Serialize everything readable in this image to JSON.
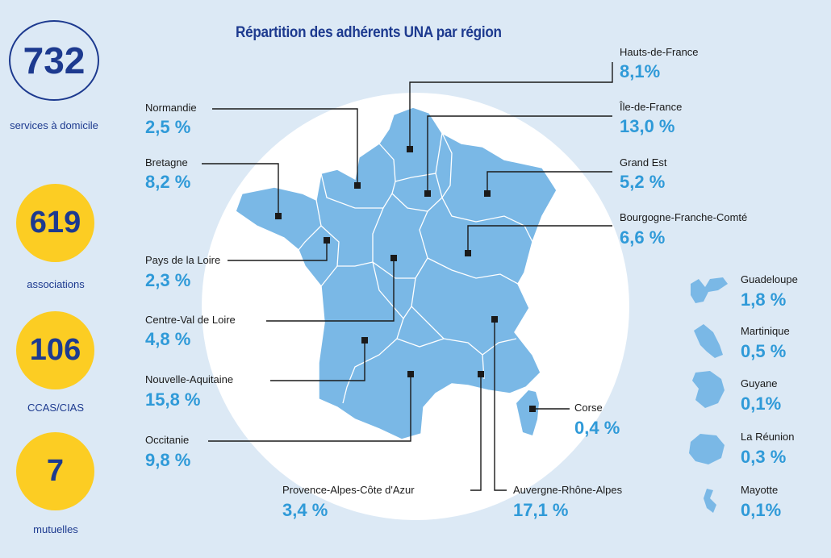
{
  "title": "Répartition des adhérents UNA par région",
  "stats": [
    {
      "value": "732",
      "label": "services à domicile",
      "style": "outline"
    },
    {
      "value": "619",
      "label": "associations",
      "style": "filled"
    },
    {
      "value": "106",
      "label": "CCAS/CIAS",
      "style": "filled"
    },
    {
      "value": "7",
      "label": "mutuelles",
      "style": "filled"
    }
  ],
  "regions": [
    {
      "id": "hauts-de-france",
      "name": "Hauts-de-France",
      "value": "8,1%"
    },
    {
      "id": "ile-de-france",
      "name": "Île-de-France",
      "value": "13,0 %"
    },
    {
      "id": "grand-est",
      "name": "Grand Est",
      "value": "5,2 %"
    },
    {
      "id": "bourgogne-franche-comte",
      "name": "Bourgogne-Franche-Comté",
      "value": "6,6 %"
    },
    {
      "id": "normandie",
      "name": "Normandie",
      "value": "2,5 %"
    },
    {
      "id": "bretagne",
      "name": "Bretagne",
      "value": "8,2 %"
    },
    {
      "id": "pays-de-la-loire",
      "name": "Pays de la Loire",
      "value": "2,3 %"
    },
    {
      "id": "centre-val-de-loire",
      "name": "Centre-Val de Loire",
      "value": "4,8 %"
    },
    {
      "id": "nouvelle-aquitaine",
      "name": "Nouvelle-Aquitaine",
      "value": "15,8 %"
    },
    {
      "id": "occitanie",
      "name": "Occitanie",
      "value": "9,8 %"
    },
    {
      "id": "provence-alpes-cote-dazur",
      "name": "Provence-Alpes-Côte d'Azur",
      "value": "3,4 %"
    },
    {
      "id": "auvergne-rhone-alpes",
      "name": "Auvergne-Rhône-Alpes",
      "value": "17,1 %"
    },
    {
      "id": "corse",
      "name": "Corse",
      "value": "0,4 %"
    }
  ],
  "overseas": [
    {
      "id": "guadeloupe",
      "name": "Guadeloupe",
      "value": "1,8 %"
    },
    {
      "id": "martinique",
      "name": "Martinique",
      "value": "0,5 %"
    },
    {
      "id": "guyane",
      "name": "Guyane",
      "value": "0,1%"
    },
    {
      "id": "la-reunion",
      "name": "La Réunion",
      "value": "0,3 %"
    },
    {
      "id": "mayotte",
      "name": "Mayotte",
      "value": "0,1%"
    }
  ],
  "colors": {
    "background": "#dce9f5",
    "map_fill": "#7ab8e6",
    "map_border": "#ffffff",
    "navy": "#1d3a8f",
    "yellow": "#fccd23",
    "value_blue": "#2f9ad8"
  }
}
